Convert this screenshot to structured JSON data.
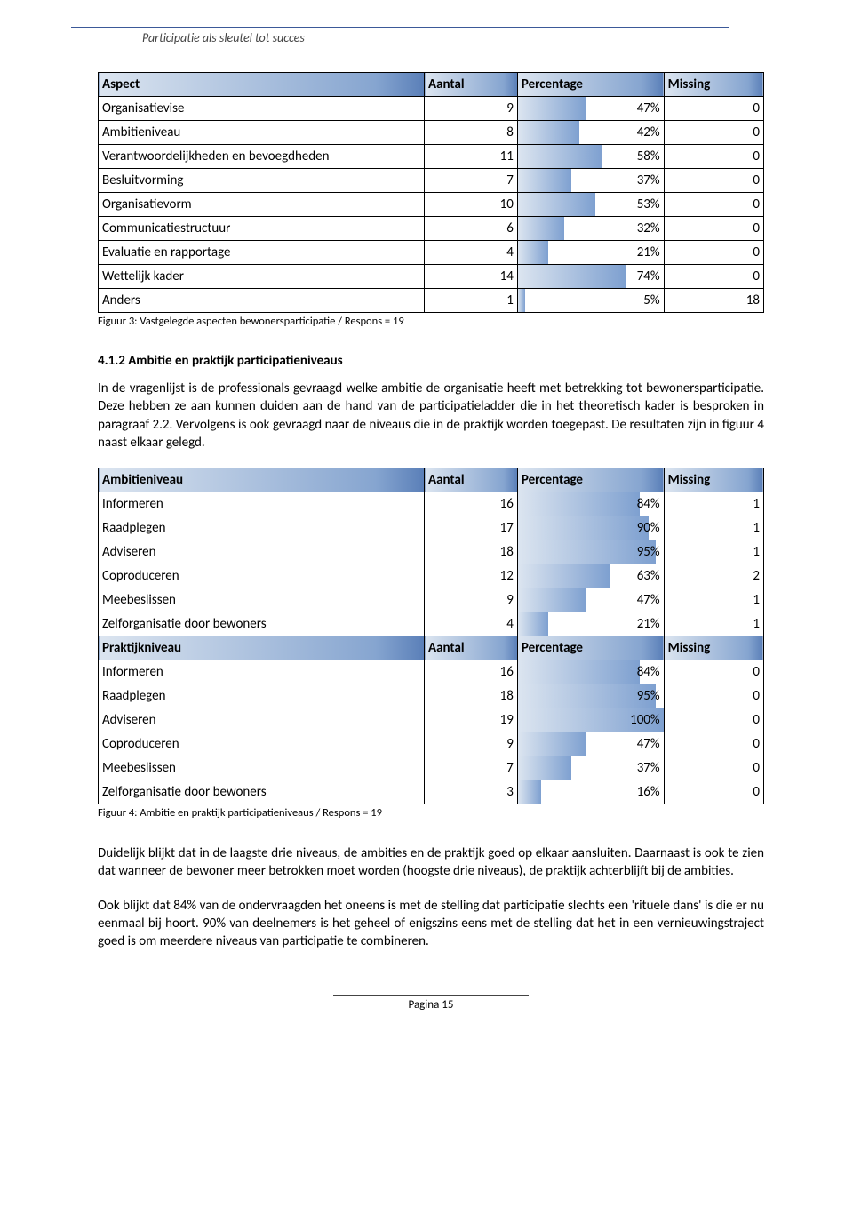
{
  "header": {
    "title": "Participatie als sleutel tot succes"
  },
  "table1": {
    "columns": [
      "Aspect",
      "Aantal",
      "Percentage",
      "Missing"
    ],
    "rows": [
      {
        "label": "Organisatievise",
        "aantal": 9,
        "pct": 47,
        "pct_text": "47%",
        "missing": 0
      },
      {
        "label": "Ambitieniveau",
        "aantal": 8,
        "pct": 42,
        "pct_text": "42%",
        "missing": 0
      },
      {
        "label": "Verantwoordelijkheden en bevoegdheden",
        "aantal": 11,
        "pct": 58,
        "pct_text": "58%",
        "missing": 0
      },
      {
        "label": "Besluitvorming",
        "aantal": 7,
        "pct": 37,
        "pct_text": "37%",
        "missing": 0
      },
      {
        "label": "Organisatievorm",
        "aantal": 10,
        "pct": 53,
        "pct_text": "53%",
        "missing": 0
      },
      {
        "label": "Communicatiestructuur",
        "aantal": 6,
        "pct": 32,
        "pct_text": "32%",
        "missing": 0
      },
      {
        "label": "Evaluatie en rapportage",
        "aantal": 4,
        "pct": 21,
        "pct_text": "21%",
        "missing": 0
      },
      {
        "label": "Wettelijk kader",
        "aantal": 14,
        "pct": 74,
        "pct_text": "74%",
        "missing": 0
      },
      {
        "label": "Anders",
        "aantal": 1,
        "pct": 5,
        "pct_text": "5%",
        "missing": 18
      }
    ],
    "caption": "Figuur 3: Vastgelegde aspecten bewonersparticipatie / Respons = 19"
  },
  "section": {
    "number_title": "4.1.2    Ambitie en praktijk participatieniveaus",
    "para1": "In de vragenlijst is de professionals gevraagd welke ambitie de organisatie heeft met betrekking tot bewonersparticipatie. Deze hebben ze aan kunnen duiden aan de hand van de participatieladder die in het theoretisch kader is besproken in paragraaf 2.2. Vervolgens is ook gevraagd naar de niveaus die in de praktijk worden toegepast. De resultaten zijn in figuur 4 naast elkaar gelegd."
  },
  "table2": {
    "header1": [
      "Ambitieniveau",
      "Aantal",
      "Percentage",
      "Missing"
    ],
    "rows1": [
      {
        "label": "Informeren",
        "aantal": 16,
        "pct": 84,
        "pct_text": "84%",
        "missing": 1
      },
      {
        "label": "Raadplegen",
        "aantal": 17,
        "pct": 90,
        "pct_text": "90%",
        "missing": 1
      },
      {
        "label": "Adviseren",
        "aantal": 18,
        "pct": 95,
        "pct_text": "95%",
        "missing": 1
      },
      {
        "label": "Coproduceren",
        "aantal": 12,
        "pct": 63,
        "pct_text": "63%",
        "missing": 2
      },
      {
        "label": "Meebeslissen",
        "aantal": 9,
        "pct": 47,
        "pct_text": "47%",
        "missing": 1
      },
      {
        "label": "Zelforganisatie door bewoners",
        "aantal": 4,
        "pct": 21,
        "pct_text": "21%",
        "missing": 1
      }
    ],
    "header2": [
      "Praktijkniveau",
      "Aantal",
      "Percentage",
      "Missing"
    ],
    "rows2": [
      {
        "label": "Informeren",
        "aantal": 16,
        "pct": 84,
        "pct_text": "84%",
        "missing": 0
      },
      {
        "label": "Raadplegen",
        "aantal": 18,
        "pct": 95,
        "pct_text": "95%",
        "missing": 0
      },
      {
        "label": "Adviseren",
        "aantal": 19,
        "pct": 100,
        "pct_text": "100%",
        "missing": 0
      },
      {
        "label": "Coproduceren",
        "aantal": 9,
        "pct": 47,
        "pct_text": "47%",
        "missing": 0
      },
      {
        "label": "Meebeslissen",
        "aantal": 7,
        "pct": 37,
        "pct_text": "37%",
        "missing": 0
      },
      {
        "label": "Zelforganisatie door bewoners",
        "aantal": 3,
        "pct": 16,
        "pct_text": "16%",
        "missing": 0
      }
    ],
    "caption": "Figuur 4: Ambitie en praktijk participatieniveaus / Respons = 19"
  },
  "para2": "Duidelijk blijkt dat in de laagste drie niveaus, de ambities en de praktijk goed op elkaar aansluiten. Daarnaast is ook te zien dat wanneer de bewoner meer betrokken moet worden (hoogste drie niveaus), de praktijk achterblijft bij de ambities.",
  "para3": "Ook blijkt dat 84% van de ondervraagden het oneens is met de stelling dat participatie slechts een 'rituele dans' is die er nu eenmaal bij hoort. 90% van deelnemers is het geheel of enigszins eens met de stelling dat het in een vernieuwingstraject goed is om meerdere niveaus van participatie te combineren.",
  "footer": "Pagina 15",
  "style": {
    "bar_gradient_start": "#dce5f0",
    "bar_gradient_end": "#7ea0d0",
    "header_gradient_start": "#dce5f0",
    "header_gradient_mid": "#86a5d0",
    "header_gradient_end": "#5a7fb8",
    "border_color": "#000000",
    "top_rule_color": "#3b5998"
  }
}
